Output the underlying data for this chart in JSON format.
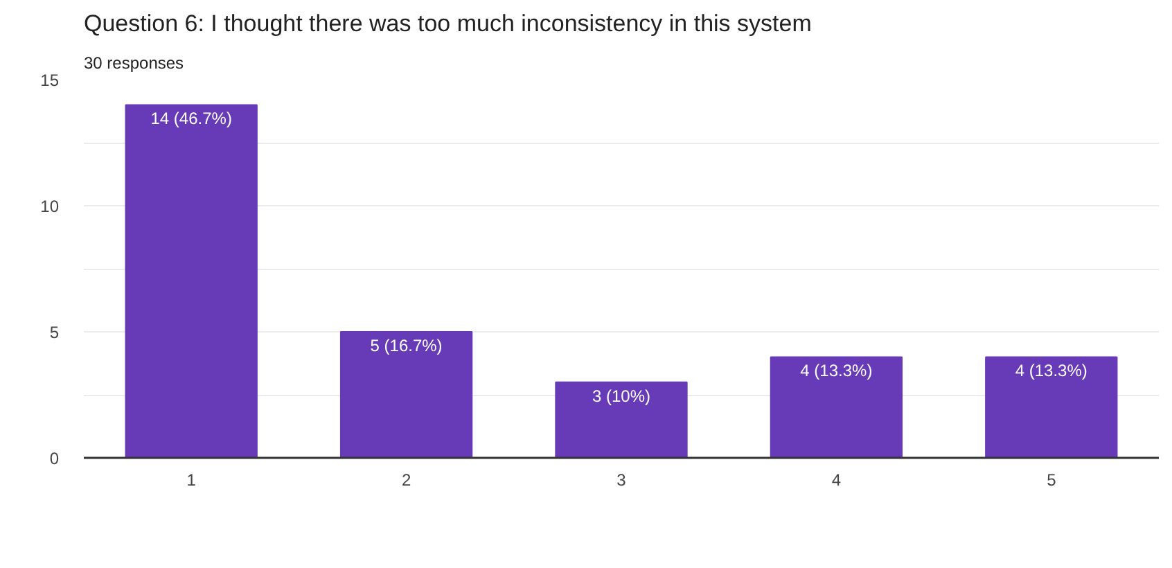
{
  "chart_data": {
    "type": "bar",
    "title": "Question 6:  I thought there was too much inconsistency in this system",
    "subtitle": "30 responses",
    "categories": [
      "1",
      "2",
      "3",
      "4",
      "5"
    ],
    "values": [
      14,
      5,
      3,
      4,
      4
    ],
    "color": "#673ab7",
    "value_labels": [
      "14 (46.7%)",
      "5 (16.7%)",
      "3 (10%)",
      "4 (13.3%)",
      "4 (13.3%)"
    ],
    "ylim": [
      0,
      15
    ],
    "yticks": [
      0,
      {
        "value": 2.5,
        "label": null
      },
      5,
      {
        "value": 7.5,
        "label": null
      },
      10,
      {
        "value": 12.5,
        "label": null
      },
      15
    ],
    "grid": "y"
  }
}
